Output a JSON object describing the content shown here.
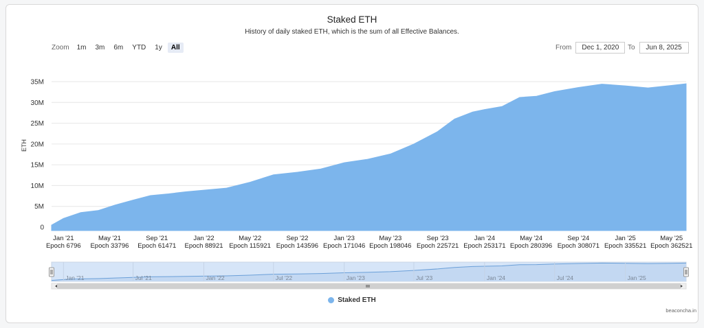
{
  "title": "Staked ETH",
  "subtitle": "History of daily staked ETH, which is the sum of all Effective Balances.",
  "zoom": {
    "label": "Zoom",
    "buttons": [
      "1m",
      "3m",
      "6m",
      "YTD",
      "1y",
      "All"
    ],
    "active": "All"
  },
  "range": {
    "from_label": "From",
    "from_value": "Dec 1, 2020",
    "to_label": "To",
    "to_value": "Jun 8, 2025"
  },
  "legend": {
    "label": "Staked ETH"
  },
  "credits": "beaconcha.in",
  "colors": {
    "area": "#7cb5ec",
    "navigator_fill": "#d6e5f8"
  },
  "navigator": {
    "labels": [
      "Jan '21",
      "Jul '21",
      "Jan '22",
      "Jul '22",
      "Jan '23",
      "Jul '23",
      "Jan '24",
      "Jul '24",
      "Jan '25"
    ]
  },
  "chart_data": {
    "type": "area",
    "ylabel": "ETH",
    "ylim": [
      0,
      35000000
    ],
    "yticks": [
      "0",
      "5M",
      "10M",
      "15M",
      "20M",
      "25M",
      "30M",
      "35M"
    ],
    "xlim": [
      "2020-12-01",
      "2025-06-08"
    ],
    "xticks": [
      {
        "date": "2021-01-01",
        "label": "Jan '21",
        "epoch": "Epoch 6796"
      },
      {
        "date": "2021-05-01",
        "label": "May '21",
        "epoch": "Epoch 33796"
      },
      {
        "date": "2021-09-01",
        "label": "Sep '21",
        "epoch": "Epoch 61471"
      },
      {
        "date": "2022-01-01",
        "label": "Jan '22",
        "epoch": "Epoch 88921"
      },
      {
        "date": "2022-05-01",
        "label": "May '22",
        "epoch": "Epoch 115921"
      },
      {
        "date": "2022-09-01",
        "label": "Sep '22",
        "epoch": "Epoch 143596"
      },
      {
        "date": "2023-01-01",
        "label": "Jan '23",
        "epoch": "Epoch 171046"
      },
      {
        "date": "2023-05-01",
        "label": "May '23",
        "epoch": "Epoch 198046"
      },
      {
        "date": "2023-09-01",
        "label": "Sep '23",
        "epoch": "Epoch 225721"
      },
      {
        "date": "2024-01-01",
        "label": "Jan '24",
        "epoch": "Epoch 253171"
      },
      {
        "date": "2024-05-01",
        "label": "May '24",
        "epoch": "Epoch 280396"
      },
      {
        "date": "2024-09-01",
        "label": "Sep '24",
        "epoch": "Epoch 308071"
      },
      {
        "date": "2025-01-01",
        "label": "Jan '25",
        "epoch": "Epoch 335521"
      },
      {
        "date": "2025-05-01",
        "label": "May '25",
        "epoch": "Epoch 362521"
      }
    ],
    "series": [
      {
        "name": "Staked ETH",
        "x": [
          "2020-12-01",
          "2021-01-01",
          "2021-02-15",
          "2021-04-01",
          "2021-05-15",
          "2021-07-01",
          "2021-08-15",
          "2021-10-01",
          "2021-11-15",
          "2022-01-01",
          "2022-03-01",
          "2022-05-01",
          "2022-07-01",
          "2022-09-01",
          "2022-11-01",
          "2023-01-01",
          "2023-03-01",
          "2023-05-01",
          "2023-07-01",
          "2023-09-01",
          "2023-10-15",
          "2023-12-01",
          "2024-01-01",
          "2024-02-15",
          "2024-04-01",
          "2024-05-15",
          "2024-07-01",
          "2024-09-01",
          "2024-11-01",
          "2025-01-01",
          "2025-03-01",
          "2025-05-01",
          "2025-06-08"
        ],
        "values": [
          500000,
          2100000,
          3500000,
          4000000,
          5300000,
          6500000,
          7600000,
          8000000,
          8500000,
          8900000,
          9400000,
          10800000,
          12600000,
          13200000,
          14000000,
          15500000,
          16300000,
          17600000,
          20000000,
          23000000,
          26000000,
          27700000,
          28300000,
          29000000,
          31200000,
          31500000,
          32600000,
          33600000,
          34400000,
          34000000,
          33500000,
          34100000,
          34500000
        ]
      }
    ]
  }
}
